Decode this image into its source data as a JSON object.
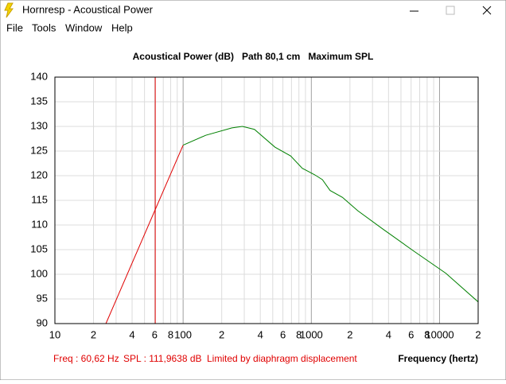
{
  "window": {
    "title": "Hornresp - Acoustical Power",
    "menu": [
      "File",
      "Tools",
      "Window",
      "Help"
    ]
  },
  "chart_data": {
    "type": "line",
    "title": "Acoustical Power (dB)   Path 80,1 cm   Maximum SPL",
    "xlabel": "Frequency (hertz)",
    "xscale": "log",
    "xlim": [
      10,
      20000
    ],
    "ylim": [
      90,
      140
    ],
    "yticks": [
      90,
      95,
      100,
      105,
      110,
      115,
      120,
      125,
      130,
      135,
      140
    ],
    "xticks": [
      10,
      {
        "value": 20,
        "label": "2"
      },
      {
        "value": 40,
        "label": "4"
      },
      {
        "value": 60,
        "label": "6"
      },
      {
        "value": 80,
        "label": "8"
      },
      100,
      {
        "value": 200,
        "label": "2"
      },
      {
        "value": 400,
        "label": "4"
      },
      {
        "value": 600,
        "label": "6"
      },
      {
        "value": 800,
        "label": "8"
      },
      1000,
      {
        "value": 2000,
        "label": "2"
      },
      {
        "value": 4000,
        "label": "4"
      },
      {
        "value": 6000,
        "label": "6"
      },
      {
        "value": 8000,
        "label": "8"
      },
      10000,
      {
        "value": 20000,
        "label": "2"
      }
    ],
    "xgrid": [
      20,
      30,
      40,
      50,
      60,
      70,
      80,
      90,
      100,
      200,
      300,
      400,
      500,
      600,
      700,
      800,
      900,
      1000,
      2000,
      3000,
      4000,
      5000,
      6000,
      7000,
      8000,
      9000,
      10000
    ],
    "grid": true,
    "series": [
      {
        "color": "#e00000",
        "x": [
          25,
          100
        ],
        "values": [
          90,
          126.2
        ]
      },
      {
        "color": "#008000",
        "x": [
          100,
          150,
          240,
          290,
          360,
          520,
          690,
          850,
          1060,
          1220,
          1400,
          1750,
          2300,
          3600,
          6300,
          11200,
          20000
        ],
        "values": [
          126.2,
          128.2,
          129.7,
          130,
          129.4,
          125.8,
          124,
          121.5,
          120.2,
          119.2,
          117,
          115.6,
          112.9,
          109.2,
          104.7,
          100.2,
          94.4
        ]
      }
    ],
    "cursor": {
      "x": 60.62,
      "color": "#e00000"
    },
    "status": [
      "Freq : 60,62 Hz",
      "SPL : 111,9638 dB",
      "Limited by diaphragm displacement"
    ]
  }
}
